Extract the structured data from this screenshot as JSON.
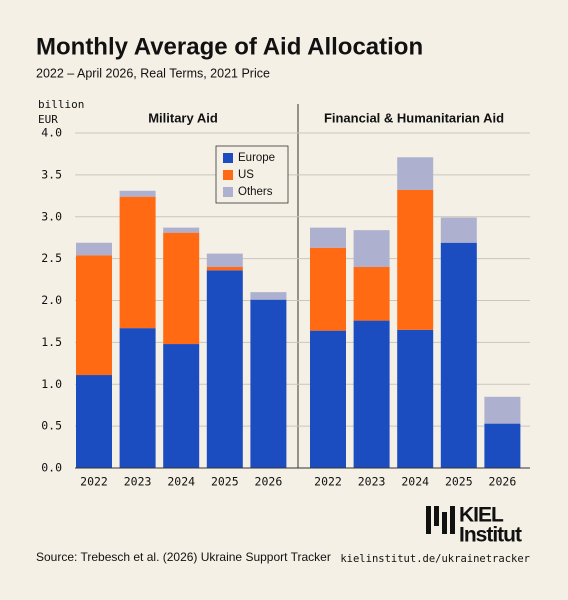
{
  "title": "Monthly Average of Aid Allocation",
  "subtitle": "2022 – April 2026, Real Terms, 2021 Price",
  "source": "Source: Trebesch et al. (2026) Ukraine Support Tracker",
  "url": "kielinstitut.de/ukrainetracker",
  "logo": {
    "line1": "KIEL",
    "line2": "Institut"
  },
  "chart_data": [
    {
      "type": "bar",
      "stacked": true,
      "title": "Military Aid",
      "ylabel": "billion EUR",
      "categories": [
        "2022",
        "2023",
        "2024",
        "2025",
        "2026"
      ],
      "series": [
        {
          "name": "Europe",
          "color": "#1b4cc0",
          "values": [
            1.11,
            1.67,
            1.48,
            2.36,
            2.01
          ]
        },
        {
          "name": "US",
          "color": "#ff6a13",
          "values": [
            1.43,
            1.57,
            1.33,
            0.04,
            0
          ]
        },
        {
          "name": "Others",
          "color": "#aeb0cf",
          "values": [
            0.15,
            0.07,
            0.06,
            0.16,
            0.09
          ]
        }
      ],
      "ylim": [
        0,
        4
      ],
      "yticks": [
        {
          "value": 0,
          "label": "0.0"
        },
        0.5,
        {
          "value": 1,
          "label": "1.0"
        },
        1.5,
        {
          "value": 2,
          "label": "2.0"
        },
        2.5,
        {
          "value": 3,
          "label": "3.0"
        },
        3.5,
        {
          "value": 4,
          "label": "4.0"
        }
      ],
      "grid": true,
      "legend": "upper right"
    },
    {
      "type": "bar",
      "stacked": true,
      "title": "Financial & Humanitarian Aid",
      "categories": [
        "2022",
        "2023",
        "2024",
        "2025",
        "2026"
      ],
      "series": [
        {
          "name": "Europe",
          "color": "#1b4cc0",
          "values": [
            1.64,
            1.76,
            1.65,
            2.69,
            0.53
          ]
        },
        {
          "name": "US",
          "color": "#ff6a13",
          "values": [
            0.99,
            0.64,
            1.67,
            0,
            0
          ]
        },
        {
          "name": "Others",
          "color": "#aeb0cf",
          "values": [
            0.24,
            0.44,
            0.39,
            0.3,
            0.32
          ]
        }
      ],
      "ylim": [
        0,
        4
      ],
      "yticks": [
        {
          "value": 0,
          "label": "0.0"
        },
        0.5,
        {
          "value": 1,
          "label": "1.0"
        },
        1.5,
        {
          "value": 2,
          "label": "2.0"
        },
        2.5,
        {
          "value": 3,
          "label": "3.0"
        },
        3.5,
        {
          "value": 4,
          "label": "4.0"
        }
      ],
      "grid": true
    }
  ]
}
